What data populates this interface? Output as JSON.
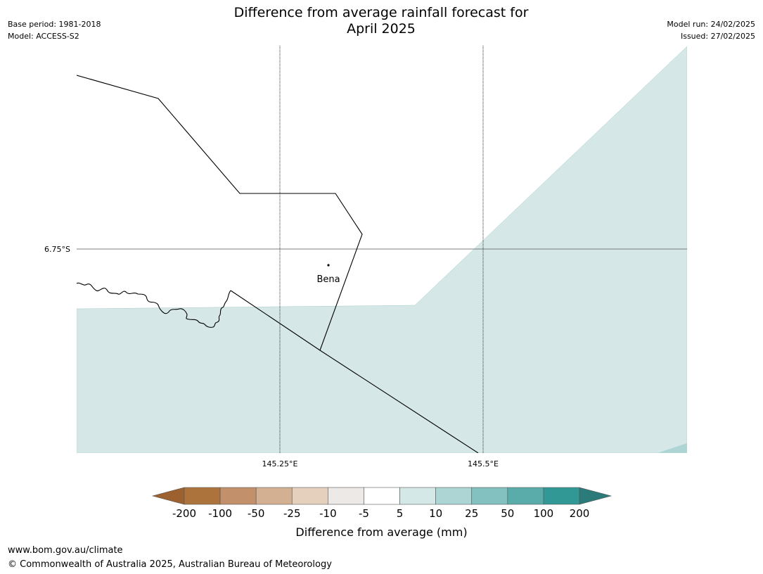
{
  "header": {
    "title_line1": "Difference from average rainfall forecast for",
    "title_line2": "April 2025",
    "base_period": "Base period: 1981-2018",
    "model": "Model: ACCESS-S2",
    "model_run": "Model run: 24/02/2025",
    "issued": "Issued: 27/02/2025"
  },
  "map": {
    "graticule": {
      "lat_label": "6.75°S",
      "lon_labels": [
        "145.25°E",
        "145.5°E"
      ]
    },
    "places": [
      {
        "name": "Bena"
      }
    ],
    "fill_category": "5 to 10 mm"
  },
  "legend": {
    "title": "Difference from average (mm)",
    "tick_labels": [
      "-200",
      "-100",
      "-50",
      "-25",
      "-10",
      "-5",
      "5",
      "10",
      "25",
      "50",
      "100",
      "200"
    ],
    "colors": [
      "#9c612e",
      "#ad733c",
      "#c2906a",
      "#d3b092",
      "#e5cfbd",
      "#ede9e6",
      "#ffffff",
      "#d4e8e7",
      "#acd5d4",
      "#82c1bf",
      "#5aacab",
      "#319896",
      "#2a7b79"
    ]
  },
  "footer": {
    "url": "www.bom.gov.au/climate",
    "copyright": "© Commonwealth of Australia 2025, Australian Bureau of Meteorology"
  }
}
